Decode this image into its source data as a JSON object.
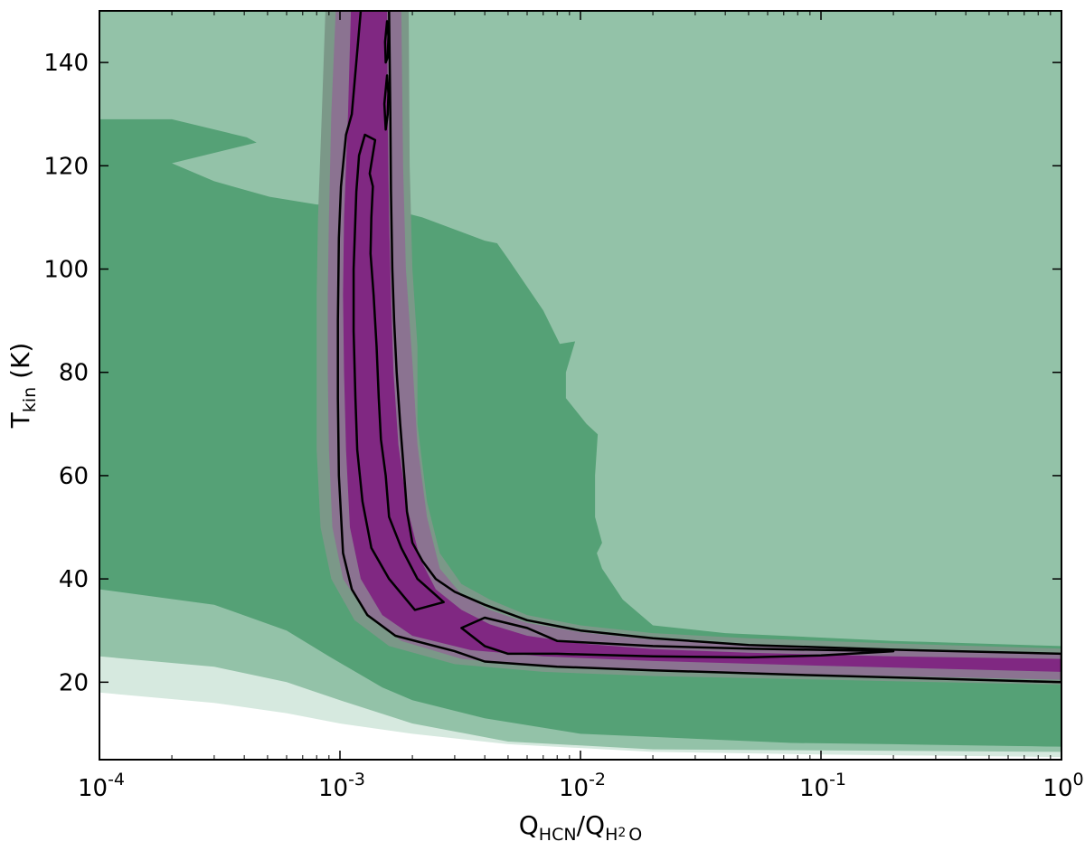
{
  "chart_data": {
    "type": "contour",
    "xlabel": {
      "main": "Q",
      "sub1": "HCN",
      "sep": "/Q",
      "sub2": "H",
      "sub2b": "2",
      "sub2c": "O"
    },
    "ylabel": {
      "main": "T",
      "sub": "kin",
      "unit": " (K)"
    },
    "x_scale": "log",
    "xlim": [
      0.0001,
      1
    ],
    "ylim": [
      5,
      150
    ],
    "x_ticks": [
      {
        "value": 0.0001,
        "base": "10",
        "exp": "-4"
      },
      {
        "value": 0.001,
        "base": "10",
        "exp": "-3"
      },
      {
        "value": 0.01,
        "base": "10",
        "exp": "-2"
      },
      {
        "value": 0.1,
        "base": "10",
        "exp": "-1"
      },
      {
        "value": 1,
        "base": "10",
        "exp": "0"
      }
    ],
    "y_ticks": [
      {
        "value": 20,
        "label": "20"
      },
      {
        "value": 40,
        "label": "40"
      },
      {
        "value": 60,
        "label": "60"
      },
      {
        "value": 80,
        "label": "80"
      },
      {
        "value": 100,
        "label": "100"
      },
      {
        "value": 120,
        "label": "120"
      },
      {
        "value": 140,
        "label": "140"
      }
    ],
    "filled_regions": [
      {
        "name": "green-light",
        "color": "#93c2a8",
        "points": [
          [
            0.0001,
            5
          ],
          [
            1,
            5
          ],
          [
            1,
            150
          ],
          [
            0.0001,
            150
          ]
        ]
      },
      {
        "name": "green-dark",
        "color": "#55a176",
        "points": [
          [
            0.0001,
            129
          ],
          [
            0.0002,
            129
          ],
          [
            0.00041,
            125.5
          ],
          [
            0.00045,
            124.5
          ],
          [
            0.0002,
            120.5
          ],
          [
            0.0003,
            117
          ],
          [
            0.00051,
            114
          ],
          [
            0.0008,
            112.5
          ],
          [
            0.0015,
            112
          ],
          [
            0.0022,
            110
          ],
          [
            0.004,
            105.5
          ],
          [
            0.0045,
            105
          ],
          [
            0.005,
            102
          ],
          [
            0.007,
            92
          ],
          [
            0.0082,
            85.5
          ],
          [
            0.0095,
            86
          ],
          [
            0.0087,
            80
          ],
          [
            0.0087,
            75
          ],
          [
            0.0106,
            70
          ],
          [
            0.0118,
            68
          ],
          [
            0.0115,
            60
          ],
          [
            0.0115,
            52
          ],
          [
            0.0123,
            47
          ],
          [
            0.0117,
            45
          ],
          [
            0.0123,
            42
          ],
          [
            0.015,
            36
          ],
          [
            0.02,
            31
          ],
          [
            0.04,
            29.5
          ],
          [
            0.2,
            28
          ],
          [
            1,
            27
          ],
          [
            1,
            7.5
          ],
          [
            0.2,
            8
          ],
          [
            0.0036,
            9
          ],
          [
            0.001,
            10
          ],
          [
            0.00042,
            11
          ],
          [
            0.0001,
            12
          ]
        ]
      },
      {
        "name": "green-light-lower",
        "color": "#93c2a8",
        "points": [
          [
            0.0001,
            38
          ],
          [
            0.0003,
            35
          ],
          [
            0.0006,
            30
          ],
          [
            0.0009,
            25
          ],
          [
            0.0015,
            19
          ],
          [
            0.002,
            16.5
          ],
          [
            0.004,
            13
          ],
          [
            0.01,
            10
          ],
          [
            0.1,
            8
          ],
          [
            1,
            7.5
          ],
          [
            1,
            5
          ],
          [
            0.0001,
            5
          ]
        ]
      },
      {
        "name": "green-pale",
        "color": "#d6e9df",
        "points": [
          [
            0.0001,
            25
          ],
          [
            0.0003,
            23
          ],
          [
            0.0006,
            20
          ],
          [
            0.001,
            16.5
          ],
          [
            0.002,
            12
          ],
          [
            0.005,
            8.5
          ],
          [
            0.02,
            7
          ],
          [
            1,
            6.5
          ],
          [
            1,
            5
          ],
          [
            0.0001,
            5
          ]
        ]
      },
      {
        "name": "white-floor",
        "color": "#ffffff",
        "points": [
          [
            0.0001,
            18
          ],
          [
            0.0003,
            16
          ],
          [
            0.0006,
            14
          ],
          [
            0.001,
            12
          ],
          [
            0.002,
            10
          ],
          [
            0.005,
            8
          ],
          [
            0.02,
            6.5
          ],
          [
            0.1,
            6
          ],
          [
            1,
            5.5
          ],
          [
            1,
            5
          ],
          [
            0.0001,
            5
          ]
        ]
      },
      {
        "name": "gray-outer",
        "color": "#7b9888",
        "points": [
          [
            0.00087,
            150
          ],
          [
            0.00084,
            130
          ],
          [
            0.00081,
            110
          ],
          [
            0.0008,
            95
          ],
          [
            0.0008,
            80
          ],
          [
            0.0008,
            65
          ],
          [
            0.00083,
            50
          ],
          [
            0.00092,
            40
          ],
          [
            0.00115,
            32
          ],
          [
            0.0016,
            27
          ],
          [
            0.003,
            23.5
          ],
          [
            0.007,
            22
          ],
          [
            0.02,
            21.2
          ],
          [
            0.1,
            20.5
          ],
          [
            1,
            19.5
          ],
          [
            1,
            26.5
          ],
          [
            0.2,
            27.5
          ],
          [
            0.05,
            28.5
          ],
          [
            0.02,
            29.5
          ],
          [
            0.01,
            31
          ],
          [
            0.006,
            33
          ],
          [
            0.0042,
            36
          ],
          [
            0.0032,
            39
          ],
          [
            0.0026,
            45
          ],
          [
            0.0023,
            55
          ],
          [
            0.0021,
            70
          ],
          [
            0.0021,
            85
          ],
          [
            0.002,
            100
          ],
          [
            0.00195,
            120
          ],
          [
            0.00193,
            150
          ]
        ]
      },
      {
        "name": "gray-mid",
        "color": "#8b7391",
        "points": [
          [
            0.00096,
            150
          ],
          [
            0.00092,
            130
          ],
          [
            0.0009,
            110
          ],
          [
            0.00089,
            95
          ],
          [
            0.00089,
            80
          ],
          [
            0.0009,
            65
          ],
          [
            0.00093,
            50
          ],
          [
            0.00103,
            40
          ],
          [
            0.0013,
            33
          ],
          [
            0.0018,
            28
          ],
          [
            0.0032,
            24.5
          ],
          [
            0.007,
            23
          ],
          [
            0.02,
            22.3
          ],
          [
            0.1,
            21.5
          ],
          [
            1,
            20.5
          ],
          [
            1,
            25.5
          ],
          [
            0.2,
            26.3
          ],
          [
            0.05,
            27.2
          ],
          [
            0.02,
            28.2
          ],
          [
            0.01,
            29.7
          ],
          [
            0.006,
            31.5
          ],
          [
            0.0042,
            34
          ],
          [
            0.0032,
            37
          ],
          [
            0.0026,
            42
          ],
          [
            0.0023,
            52
          ],
          [
            0.0021,
            66
          ],
          [
            0.002,
            82
          ],
          [
            0.00188,
            100
          ],
          [
            0.00183,
            120
          ],
          [
            0.0018,
            150
          ]
        ]
      },
      {
        "name": "purple-band",
        "color": "#802882",
        "points": [
          [
            0.00111,
            150
          ],
          [
            0.00108,
            130
          ],
          [
            0.00104,
            110
          ],
          [
            0.00103,
            95
          ],
          [
            0.00104,
            80
          ],
          [
            0.00106,
            65
          ],
          [
            0.0011,
            50
          ],
          [
            0.00122,
            40
          ],
          [
            0.0015,
            33
          ],
          [
            0.002,
            29
          ],
          [
            0.0035,
            26.2
          ],
          [
            0.007,
            25
          ],
          [
            0.02,
            24.1
          ],
          [
            0.1,
            23.2
          ],
          [
            1,
            22
          ],
          [
            1,
            24.5
          ],
          [
            0.2,
            25
          ],
          [
            0.05,
            25.7
          ],
          [
            0.02,
            26.4
          ],
          [
            0.01,
            27.5
          ],
          [
            0.006,
            29
          ],
          [
            0.0042,
            31.2
          ],
          [
            0.0032,
            34
          ],
          [
            0.0025,
            38
          ],
          [
            0.00215,
            44
          ],
          [
            0.0019,
            54
          ],
          [
            0.00175,
            66
          ],
          [
            0.00167,
            80
          ],
          [
            0.00163,
            95
          ],
          [
            0.0016,
            110
          ],
          [
            0.00158,
            130
          ],
          [
            0.00157,
            150
          ]
        ]
      }
    ],
    "contours": [
      {
        "name": "contour-outer",
        "closed": false,
        "points": [
          [
            0.00122,
            150
          ],
          [
            0.00112,
            130
          ],
          [
            0.00106,
            126
          ],
          [
            0.00101,
            116
          ],
          [
            0.00099,
            106
          ],
          [
            0.00098,
            90
          ],
          [
            0.00098,
            75
          ],
          [
            0.00099,
            60
          ],
          [
            0.00103,
            45
          ],
          [
            0.00112,
            38
          ],
          [
            0.0013,
            33
          ],
          [
            0.0017,
            29
          ],
          [
            0.003,
            26
          ],
          [
            0.004,
            24
          ],
          [
            0.008,
            23
          ],
          [
            0.02,
            22.3
          ],
          [
            0.1,
            21.3
          ],
          [
            1,
            20
          ],
          [
            1,
            25.5
          ],
          [
            0.2,
            26.3
          ],
          [
            0.05,
            27.2
          ],
          [
            0.02,
            28.5
          ],
          [
            0.01,
            30
          ],
          [
            0.006,
            32
          ],
          [
            0.004,
            35
          ],
          [
            0.003,
            37.5
          ],
          [
            0.0025,
            40
          ],
          [
            0.0022,
            43.5
          ],
          [
            0.002,
            47
          ],
          [
            0.0019,
            53
          ],
          [
            0.00185,
            60
          ],
          [
            0.00178,
            70
          ],
          [
            0.00172,
            80
          ],
          [
            0.00168,
            90
          ],
          [
            0.00165,
            100
          ],
          [
            0.00163,
            115
          ],
          [
            0.00162,
            130
          ],
          [
            0.0016,
            150
          ]
        ]
      },
      {
        "name": "contour-inner-upper",
        "closed": true,
        "points": [
          [
            0.00127,
            126
          ],
          [
            0.0012,
            122
          ],
          [
            0.00117,
            115
          ],
          [
            0.00114,
            100
          ],
          [
            0.00114,
            88
          ],
          [
            0.00116,
            75
          ],
          [
            0.00118,
            65
          ],
          [
            0.00124,
            55
          ],
          [
            0.00135,
            46
          ],
          [
            0.0016,
            40
          ],
          [
            0.00205,
            34
          ],
          [
            0.0027,
            35.5
          ],
          [
            0.0021,
            40
          ],
          [
            0.0018,
            46
          ],
          [
            0.0016,
            52
          ],
          [
            0.00155,
            60
          ],
          [
            0.00148,
            67
          ],
          [
            0.00145,
            75
          ],
          [
            0.00142,
            85
          ],
          [
            0.00138,
            95
          ],
          [
            0.00134,
            103
          ],
          [
            0.00135,
            110
          ],
          [
            0.00137,
            116
          ],
          [
            0.00133,
            118.5
          ],
          [
            0.0014,
            125
          ]
        ]
      },
      {
        "name": "contour-inner-lower",
        "closed": true,
        "points": [
          [
            0.0032,
            30.5
          ],
          [
            0.004,
            32.5
          ],
          [
            0.006,
            30.5
          ],
          [
            0.008,
            28
          ],
          [
            0.02,
            27
          ],
          [
            0.05,
            26.5
          ],
          [
            0.2,
            26
          ],
          [
            0.1,
            25.2
          ],
          [
            0.05,
            24.8
          ],
          [
            0.02,
            25
          ],
          [
            0.008,
            25.5
          ],
          [
            0.005,
            25.5
          ],
          [
            0.004,
            27
          ]
        ]
      },
      {
        "name": "contour-peak-1",
        "closed": true,
        "points": [
          [
            0.00157,
            148
          ],
          [
            0.00154,
            144
          ],
          [
            0.00155,
            140
          ],
          [
            0.00158,
            141
          ],
          [
            0.00159,
            145
          ]
        ]
      },
      {
        "name": "contour-peak-2",
        "closed": true,
        "points": [
          [
            0.00157,
            137.5
          ],
          [
            0.00153,
            132
          ],
          [
            0.00155,
            127
          ],
          [
            0.00158,
            130
          ],
          [
            0.00159,
            134
          ]
        ]
      }
    ]
  }
}
